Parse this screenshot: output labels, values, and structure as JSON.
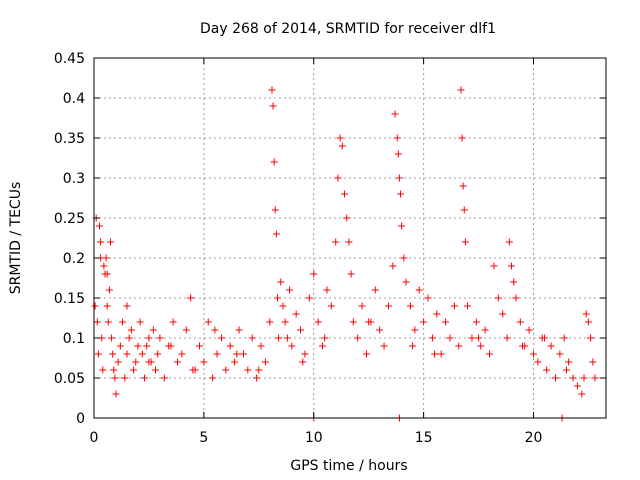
{
  "chart_data": {
    "type": "scatter",
    "title": "Day 268 of 2014, SRMTID for receiver dlf1",
    "xlabel": "GPS time / hours",
    "ylabel": "SRMTID / TECUs",
    "xlim": [
      0,
      23.3
    ],
    "ylim": [
      0,
      0.45
    ],
    "xticks": [
      0,
      5,
      10,
      15,
      20
    ],
    "yticks": [
      0,
      0.05,
      0.1,
      0.15,
      0.2,
      0.25,
      0.3,
      0.35,
      0.4,
      0.45
    ],
    "xtick_labels": [
      "0",
      "5",
      "10",
      "15",
      "20"
    ],
    "ytick_labels": [
      "0",
      "0.05",
      "0.1",
      "0.15",
      "0.2",
      "0.25",
      "0.3",
      "0.35",
      "0.4",
      "0.45"
    ],
    "grid": true,
    "legend": "none",
    "marker": "+",
    "color": "#ff0000",
    "series": [
      {
        "name": "SRMTID",
        "x": [
          0.05,
          0.1,
          0.15,
          0.2,
          0.25,
          0.3,
          0.35,
          0.4,
          0.45,
          0.5,
          0.55,
          0.6,
          0.65,
          0.7,
          0.75,
          0.8,
          0.85,
          0.9,
          0.95,
          1.0,
          1.1,
          1.2,
          1.3,
          1.4,
          1.5,
          1.6,
          1.7,
          1.8,
          1.9,
          2.0,
          2.1,
          2.2,
          2.3,
          2.4,
          2.5,
          2.6,
          2.7,
          2.8,
          2.9,
          3.0,
          3.2,
          3.4,
          3.6,
          3.8,
          4.0,
          4.2,
          4.4,
          4.6,
          4.8,
          5.0,
          5.2,
          5.4,
          5.6,
          5.8,
          6.0,
          6.2,
          6.4,
          6.6,
          6.8,
          7.0,
          7.2,
          7.4,
          7.6,
          7.8,
          8.0,
          8.1,
          8.15,
          8.2,
          8.25,
          8.3,
          8.35,
          8.4,
          8.5,
          8.6,
          8.7,
          8.8,
          8.9,
          9.0,
          9.2,
          9.4,
          9.6,
          9.8,
          10.0,
          10.2,
          10.4,
          10.6,
          10.8,
          11.0,
          11.1,
          11.2,
          11.3,
          11.4,
          11.5,
          11.6,
          11.7,
          11.8,
          12.0,
          12.2,
          12.4,
          12.6,
          12.8,
          13.0,
          13.2,
          13.4,
          13.6,
          13.7,
          13.8,
          13.85,
          13.9,
          13.95,
          14.0,
          14.1,
          14.2,
          14.4,
          14.6,
          14.8,
          15.0,
          15.2,
          15.4,
          15.6,
          15.8,
          16.0,
          16.2,
          16.4,
          16.6,
          16.7,
          16.75,
          16.8,
          16.85,
          16.9,
          17.0,
          17.2,
          17.4,
          17.6,
          17.8,
          18.0,
          18.2,
          18.4,
          18.6,
          18.8,
          18.9,
          19.0,
          19.1,
          19.2,
          19.4,
          19.6,
          19.8,
          20.0,
          20.2,
          20.4,
          20.6,
          20.8,
          21.0,
          21.2,
          21.4,
          21.6,
          21.8,
          22.0,
          22.2,
          22.4,
          22.5,
          22.6,
          22.7,
          22.8,
          0.3,
          0.6,
          1.5,
          2.5,
          3.5,
          4.5,
          5.5,
          6.5,
          7.5,
          9.5,
          10.5,
          12.5,
          14.5,
          15.5,
          17.5,
          19.5,
          20.5,
          21.5,
          22.3,
          10.0,
          13.9,
          21.3
        ],
        "y": [
          0.14,
          0.25,
          0.12,
          0.08,
          0.24,
          0.22,
          0.1,
          0.06,
          0.19,
          0.18,
          0.2,
          0.14,
          0.12,
          0.16,
          0.22,
          0.1,
          0.08,
          0.06,
          0.05,
          0.03,
          0.07,
          0.09,
          0.12,
          0.05,
          0.08,
          0.1,
          0.11,
          0.06,
          0.07,
          0.09,
          0.12,
          0.08,
          0.05,
          0.09,
          0.1,
          0.07,
          0.11,
          0.06,
          0.08,
          0.1,
          0.05,
          0.09,
          0.12,
          0.07,
          0.08,
          0.11,
          0.15,
          0.06,
          0.09,
          0.07,
          0.12,
          0.05,
          0.08,
          0.1,
          0.06,
          0.09,
          0.07,
          0.11,
          0.08,
          0.06,
          0.1,
          0.05,
          0.09,
          0.07,
          0.12,
          0.41,
          0.39,
          0.32,
          0.26,
          0.23,
          0.15,
          0.1,
          0.17,
          0.14,
          0.12,
          0.1,
          0.16,
          0.09,
          0.13,
          0.11,
          0.08,
          0.15,
          0.18,
          0.12,
          0.09,
          0.16,
          0.14,
          0.22,
          0.3,
          0.35,
          0.34,
          0.28,
          0.25,
          0.22,
          0.18,
          0.12,
          0.1,
          0.14,
          0.08,
          0.12,
          0.16,
          0.11,
          0.09,
          0.14,
          0.19,
          0.38,
          0.35,
          0.33,
          0.3,
          0.28,
          0.24,
          0.2,
          0.17,
          0.14,
          0.11,
          0.16,
          0.12,
          0.15,
          0.1,
          0.13,
          0.08,
          0.12,
          0.1,
          0.14,
          0.09,
          0.41,
          0.35,
          0.29,
          0.26,
          0.22,
          0.14,
          0.1,
          0.12,
          0.09,
          0.11,
          0.08,
          0.19,
          0.15,
          0.13,
          0.1,
          0.22,
          0.19,
          0.17,
          0.15,
          0.12,
          0.09,
          0.11,
          0.08,
          0.07,
          0.1,
          0.06,
          0.09,
          0.05,
          0.08,
          0.1,
          0.07,
          0.05,
          0.04,
          0.03,
          0.13,
          0.12,
          0.1,
          0.07,
          0.05,
          0.2,
          0.18,
          0.14,
          0.07,
          0.09,
          0.06,
          0.11,
          0.08,
          0.06,
          0.07,
          0.1,
          0.12,
          0.09,
          0.08,
          0.1,
          0.09,
          0.1,
          0.06,
          0.05,
          0.0,
          0.0,
          0.0
        ]
      }
    ]
  }
}
